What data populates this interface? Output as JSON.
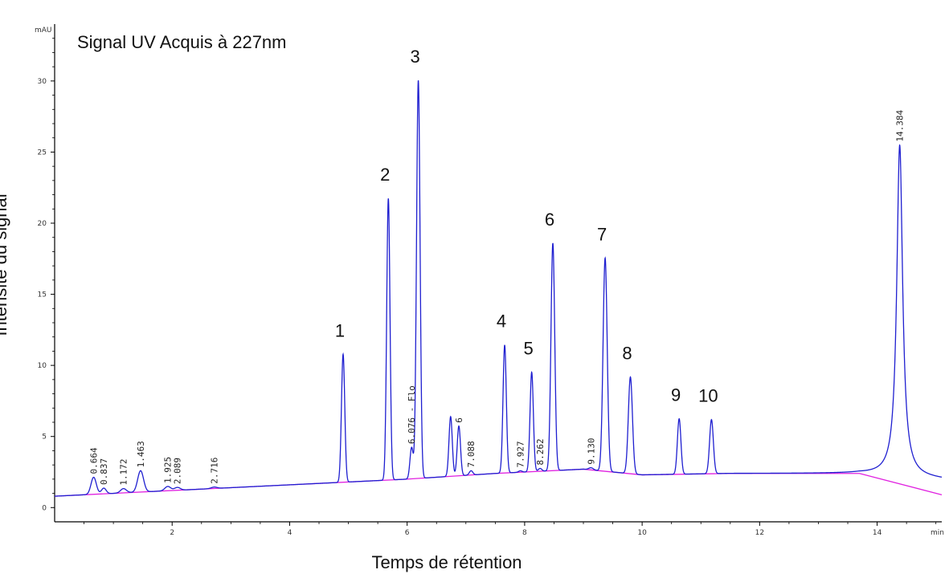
{
  "chart_data": {
    "type": "line",
    "title": "Signal UV Acquis à 227nm",
    "xlabel": "Temps de rétention",
    "ylabel": "Intensité du signal",
    "x_unit": "min",
    "y_unit": "mAU",
    "xlim": [
      0,
      15.1
    ],
    "ylim": [
      -1.0,
      34.0
    ],
    "x_ticks": [
      2,
      4,
      6,
      8,
      10,
      12,
      14
    ],
    "y_ticks": [
      0,
      5,
      10,
      15,
      20,
      25,
      30
    ],
    "colors": {
      "signal": "#1f1fd0",
      "baseline": "#e020e0",
      "axis": "#000000"
    },
    "baseline": {
      "points": [
        [
          0,
          0.8
        ],
        [
          6,
          2.0
        ],
        [
          7.5,
          2.4
        ],
        [
          9.0,
          2.7
        ],
        [
          10.0,
          2.3
        ],
        [
          11.5,
          2.4
        ],
        [
          13.7,
          2.4
        ],
        [
          15.1,
          0.9
        ]
      ]
    },
    "peaks": [
      {
        "rt": 0.664,
        "height": 1.2,
        "width": 0.045,
        "label": "0.664"
      },
      {
        "rt": 0.837,
        "height": 0.4,
        "width": 0.04,
        "label": "0.837"
      },
      {
        "rt": 1.172,
        "height": 0.3,
        "width": 0.05,
        "label": "1.172"
      },
      {
        "rt": 1.463,
        "height": 1.5,
        "width": 0.05,
        "label": "1.463"
      },
      {
        "rt": 1.925,
        "height": 0.3,
        "width": 0.05,
        "label": "1.925"
      },
      {
        "rt": 2.089,
        "height": 0.2,
        "width": 0.05,
        "label": "2.089"
      },
      {
        "rt": 2.716,
        "height": 0.1,
        "width": 0.05,
        "label": "2.716"
      },
      {
        "rt": 4.91,
        "height": 9.0,
        "width": 0.028,
        "number": "1"
      },
      {
        "rt": 5.68,
        "height": 19.8,
        "width": 0.028,
        "number": "2"
      },
      {
        "rt": 6.076,
        "height": 2.2,
        "width": 0.028,
        "label": "6.076 - Flo"
      },
      {
        "rt": 6.19,
        "height": 28.0,
        "width": 0.03,
        "number": "3"
      },
      {
        "rt": 6.74,
        "height": 4.2,
        "width": 0.028
      },
      {
        "rt": 6.88,
        "height": 3.5,
        "width": 0.028,
        "label": "6"
      },
      {
        "rt": 7.088,
        "height": 0.3,
        "width": 0.03,
        "label": "7.088"
      },
      {
        "rt": 7.66,
        "height": 9.0,
        "width": 0.028,
        "number": "4"
      },
      {
        "rt": 7.927,
        "height": 0.1,
        "width": 0.03,
        "label": "7.927"
      },
      {
        "rt": 8.12,
        "height": 7.0,
        "width": 0.028,
        "number": "5"
      },
      {
        "rt": 8.262,
        "height": 0.2,
        "width": 0.03,
        "label": "8.262"
      },
      {
        "rt": 8.48,
        "height": 16.0,
        "width": 0.032,
        "number": "6"
      },
      {
        "rt": 9.13,
        "height": 0.15,
        "width": 0.04,
        "label": "9.130"
      },
      {
        "rt": 9.37,
        "height": 15.0,
        "width": 0.035,
        "number": "7"
      },
      {
        "rt": 9.8,
        "height": 6.8,
        "width": 0.035,
        "number": "8"
      },
      {
        "rt": 10.63,
        "height": 3.9,
        "width": 0.03,
        "number": "9"
      },
      {
        "rt": 11.18,
        "height": 3.8,
        "width": 0.032,
        "number": "10"
      },
      {
        "rt": 14.384,
        "height": 23.3,
        "width": 0.06,
        "label": "14.384"
      }
    ]
  }
}
